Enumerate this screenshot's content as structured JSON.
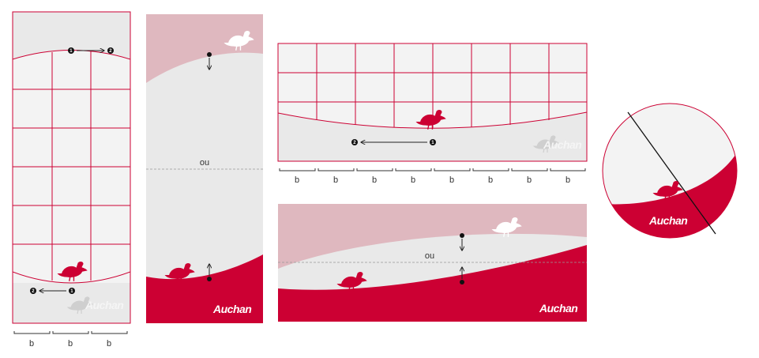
{
  "colors": {
    "brand_red": "#cc0033",
    "light_pink": "#dfb8bf",
    "light_gray": "#e9e9e9",
    "grid_bg": "#f3f3f3",
    "white": "#ffffff"
  },
  "labels": {
    "spacing_symbol": "b",
    "alternative": "ou",
    "brand_name": "Auchan",
    "step_one": "1",
    "step_two": "2"
  },
  "icons": {
    "bird": "bird-icon",
    "arrow": "arrow-icon",
    "watermark": "bird-watermark-icon"
  }
}
